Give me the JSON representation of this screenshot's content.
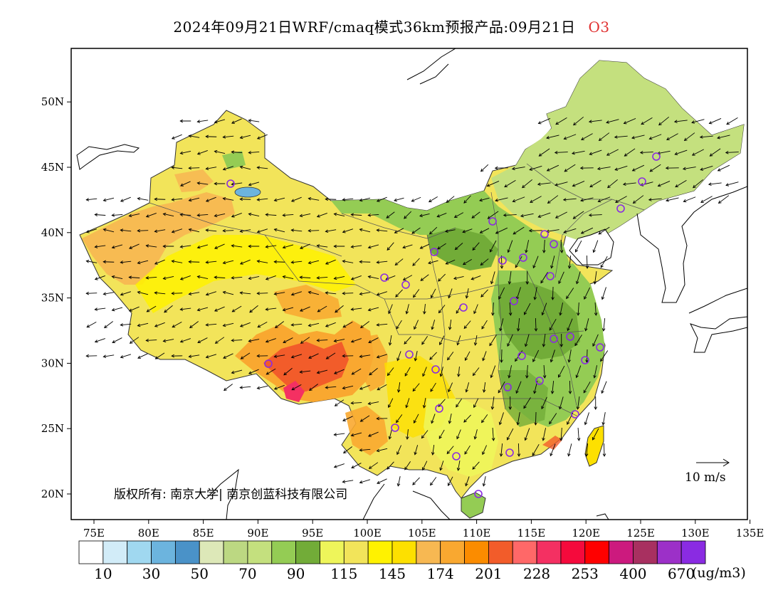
{
  "title": {
    "main": "2024年09月21日WRF/cmaq模式36km预报产品:09月21日",
    "species": "O3"
  },
  "axes": {
    "x_ticks": [
      "75E",
      "80E",
      "85E",
      "90E",
      "95E",
      "100E",
      "105E",
      "110E",
      "115E",
      "120E",
      "125E",
      "130E",
      "135E"
    ],
    "y_ticks": [
      "20N",
      "25N",
      "30N",
      "35N",
      "40N",
      "45N",
      "50N"
    ]
  },
  "copyright": "版权所有: 南京大学| 南京创蓝科技有限公司",
  "wind_reference": "10 m/s",
  "colorbar": {
    "colors": [
      "#ffffff",
      "#d2ecf8",
      "#a0d8f0",
      "#6cb4de",
      "#4a92c8",
      "#dde8b8",
      "#bcd882",
      "#c4e07e",
      "#94cc54",
      "#72ac38",
      "#eef55a",
      "#f2e45a",
      "#fff200",
      "#fde000",
      "#f7b852",
      "#f9a830",
      "#fb8c00",
      "#f25c2a",
      "#ff6868",
      "#f43062",
      "#f50a3c",
      "#ff0000",
      "#cc1a7e",
      "#a83060",
      "#9c30c8",
      "#8a2be2"
    ],
    "labels": [
      "10",
      "30",
      "50",
      "70",
      "90",
      "115",
      "145",
      "174",
      "201",
      "228",
      "253",
      "400",
      "670"
    ],
    "unit": "(ug/m3)"
  },
  "colors": {
    "species_title": "#e03030",
    "station_marker": "#8a2be2",
    "frame": "#000000"
  },
  "stations_count_note": ""
}
